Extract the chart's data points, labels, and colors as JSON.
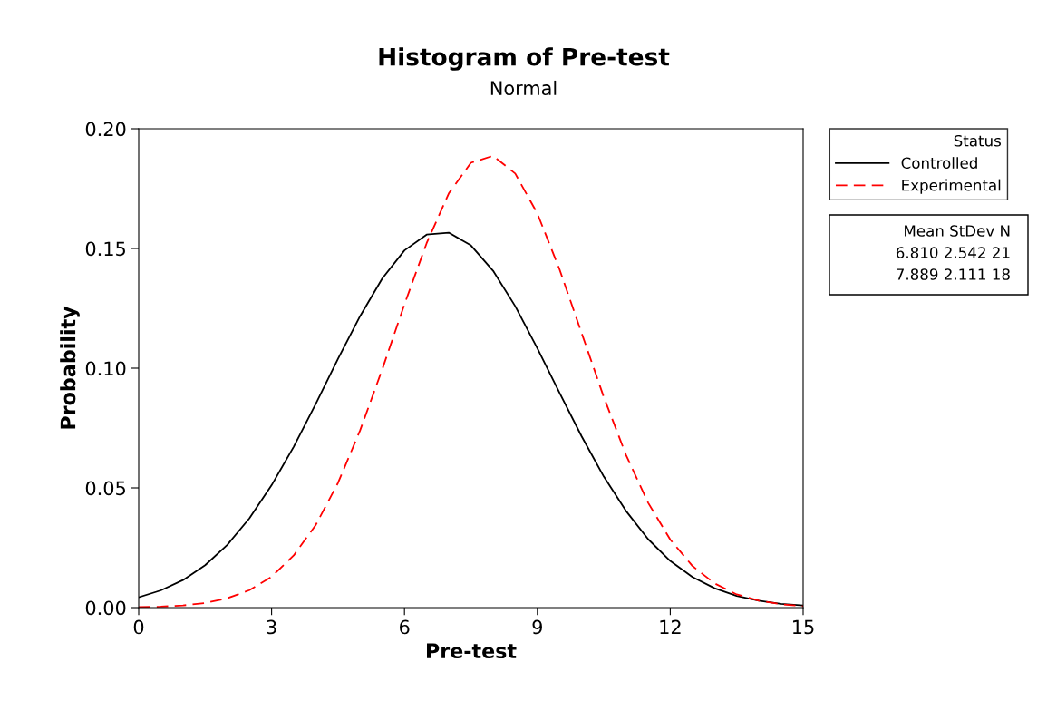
{
  "chart_data": {
    "type": "line",
    "title": "Histogram of Pre-test",
    "subtitle": "Normal",
    "xlabel": "Pre-test",
    "ylabel": "Probability",
    "legend_title": "Status",
    "x": [
      0,
      0.5,
      1,
      1.5,
      2,
      2.5,
      3,
      3.5,
      4,
      4.5,
      5,
      5.5,
      6,
      6.5,
      7,
      7.5,
      8,
      8.5,
      9,
      9.5,
      10,
      10.5,
      11,
      11.5,
      12,
      12.5,
      13,
      13.5,
      14,
      14.5,
      15
    ],
    "series": [
      {
        "name": "Controlled",
        "color": "#000000",
        "line_style": "solid",
        "values": [
          0.0043,
          0.0072,
          0.0115,
          0.0177,
          0.0262,
          0.0373,
          0.0511,
          0.0672,
          0.0852,
          0.1039,
          0.1218,
          0.1375,
          0.1492,
          0.1558,
          0.1566,
          0.1513,
          0.1407,
          0.1259,
          0.1083,
          0.0897,
          0.0715,
          0.0547,
          0.0404,
          0.0286,
          0.0195,
          0.0128,
          0.0081,
          0.0049,
          0.0029,
          0.0016,
          0.0009
        ]
      },
      {
        "name": "Experimental",
        "color": "#ff0000",
        "line_style": "dashed",
        "values": [
          0.0002,
          0.0004,
          0.0009,
          0.0019,
          0.0039,
          0.0073,
          0.0129,
          0.0218,
          0.0346,
          0.0521,
          0.0741,
          0.0996,
          0.1267,
          0.1522,
          0.173,
          0.1858,
          0.1887,
          0.1813,
          0.1646,
          0.1413,
          0.1146,
          0.0879,
          0.0638,
          0.0438,
          0.0284,
          0.0174,
          0.0101,
          0.0055,
          0.0029,
          0.0014,
          0.0006
        ]
      }
    ],
    "annotations": [
      "Mean StDev N",
      "6.810 2.542 21",
      "7.889 2.111 18"
    ],
    "xlim": [
      0,
      15
    ],
    "xticks": [
      0,
      3,
      6,
      9,
      12,
      15
    ],
    "ylim": [
      0,
      0.2
    ],
    "yticks": [
      {
        "value": 0,
        "label": "0.00"
      },
      {
        "value": 0.05,
        "label": "0.05"
      },
      {
        "value": 0.1,
        "label": "0.10"
      },
      {
        "value": 0.15,
        "label": "0.15"
      },
      {
        "value": 0.2,
        "label": "0.20"
      }
    ],
    "legend": "right",
    "grid": false,
    "marker": "none"
  }
}
